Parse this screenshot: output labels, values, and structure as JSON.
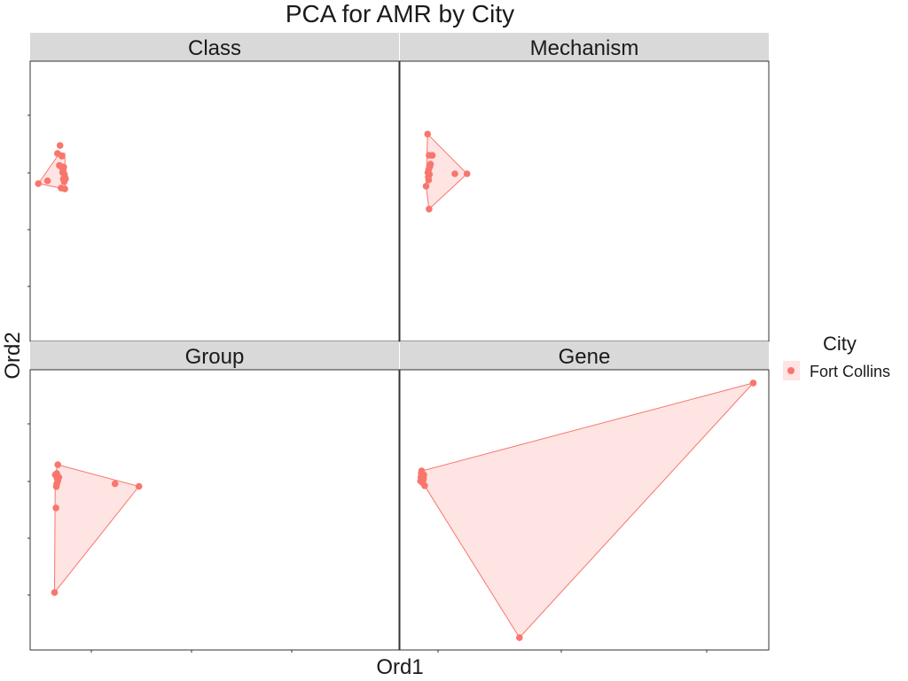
{
  "chart_data": {
    "type": "scatter",
    "title": "PCA for AMR by City",
    "xlabel": "Ord1",
    "ylabel": "Ord2",
    "tick_labels_shown": false,
    "grid": false,
    "legend": {
      "title": "City",
      "placement": "right",
      "entries": [
        {
          "name": "Fort Collins",
          "color": "#F8766D"
        }
      ]
    },
    "colors": {
      "point": "#F8766D",
      "hull_fill": "#F8766D",
      "hull_fill_opacity": 0.2,
      "strip": "#d9d9d9"
    },
    "xlim": [
      0,
      100
    ],
    "ylim": [
      0,
      100
    ],
    "panels": [
      {
        "name": "Class",
        "hull": [
          [
            2.2,
            56.3
          ],
          [
            8.1,
            67.4
          ],
          [
            9.4,
            67.1
          ],
          [
            9.6,
            54.4
          ],
          [
            8.4,
            54.7
          ]
        ],
        "points": [
          [
            2.2,
            56.3
          ],
          [
            4.7,
            57.3
          ],
          [
            7.4,
            67.1
          ],
          [
            8.1,
            69.9
          ],
          [
            8.6,
            66.1
          ],
          [
            7.9,
            62.8
          ],
          [
            8.4,
            62.5
          ],
          [
            8.7,
            61.9
          ],
          [
            9.1,
            62.2
          ],
          [
            9.0,
            61.2
          ],
          [
            8.8,
            60.3
          ],
          [
            9.3,
            59.6
          ],
          [
            9.4,
            58.6
          ],
          [
            9.0,
            58.0
          ],
          [
            9.6,
            58.0
          ],
          [
            9.2,
            57.0
          ],
          [
            8.4,
            54.7
          ],
          [
            9.4,
            54.4
          ]
        ]
      },
      {
        "name": "Mechanism",
        "hull": [
          [
            7.5,
            74.0
          ],
          [
            18.2,
            59.8
          ],
          [
            7.9,
            47.2
          ],
          [
            7.1,
            55.4
          ]
        ],
        "points": [
          [
            7.5,
            74.0
          ],
          [
            7.9,
            66.4
          ],
          [
            8.8,
            66.4
          ],
          [
            8.3,
            63.3
          ],
          [
            8.1,
            62.3
          ],
          [
            7.8,
            61.3
          ],
          [
            7.6,
            60.2
          ],
          [
            8.0,
            59.6
          ],
          [
            7.7,
            58.6
          ],
          [
            7.8,
            57.6
          ],
          [
            7.1,
            55.4
          ],
          [
            14.9,
            59.8
          ],
          [
            18.2,
            59.8
          ],
          [
            7.9,
            47.2
          ]
        ]
      },
      {
        "name": "Group",
        "hull": [
          [
            7.5,
            66.1
          ],
          [
            29.5,
            58.4
          ],
          [
            6.6,
            20.5
          ],
          [
            6.8,
            62.5
          ]
        ],
        "points": [
          [
            7.5,
            66.1
          ],
          [
            7.2,
            63.0
          ],
          [
            6.8,
            62.5
          ],
          [
            7.4,
            62.1
          ],
          [
            7.8,
            61.6
          ],
          [
            7.3,
            61.2
          ],
          [
            7.5,
            60.3
          ],
          [
            7.2,
            59.3
          ],
          [
            7.1,
            58.3
          ],
          [
            7.0,
            50.7
          ],
          [
            23.0,
            59.3
          ],
          [
            29.5,
            58.4
          ],
          [
            6.6,
            20.5
          ]
        ]
      },
      {
        "name": "Gene",
        "hull": [
          [
            5.9,
            63.9
          ],
          [
            95.8,
            95.3
          ],
          [
            32.4,
            4.4
          ],
          [
            6.7,
            58.6
          ],
          [
            5.6,
            60.3
          ]
        ],
        "points": [
          [
            5.9,
            63.9
          ],
          [
            5.8,
            63.0
          ],
          [
            6.5,
            62.5
          ],
          [
            5.7,
            61.6
          ],
          [
            6.4,
            61.2
          ],
          [
            5.6,
            60.3
          ],
          [
            6.3,
            60.6
          ],
          [
            6.1,
            59.7
          ],
          [
            6.7,
            58.6
          ],
          [
            95.8,
            95.3
          ],
          [
            32.4,
            4.4
          ]
        ]
      }
    ]
  }
}
